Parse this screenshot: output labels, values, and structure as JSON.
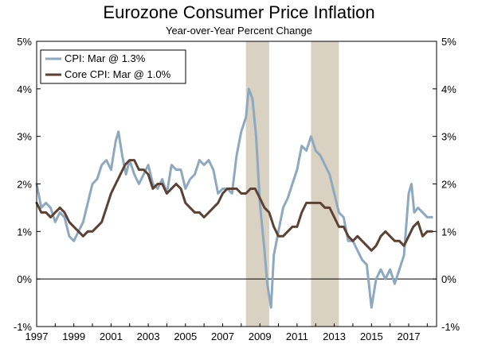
{
  "chart_data": {
    "type": "line",
    "title": "Eurozone Consumer Price Inflation",
    "subtitle": "Year-over-Year Percent Change",
    "xlabel": "",
    "ylabel": "",
    "xlim": [
      1997.0,
      2018.5
    ],
    "ylim": [
      -1,
      5
    ],
    "y_ticks": [
      -1,
      0,
      1,
      2,
      3,
      4,
      5
    ],
    "y_tick_labels": [
      "-1%",
      "0%",
      "1%",
      "2%",
      "3%",
      "4%",
      "5%"
    ],
    "x_ticks": [
      1997,
      1999,
      2001,
      2003,
      2005,
      2007,
      2009,
      2011,
      2013,
      2015,
      2017
    ],
    "x_tick_labels": [
      "1997",
      "1999",
      "2001",
      "2003",
      "2005",
      "2007",
      "2009",
      "2011",
      "2013",
      "2015",
      "2017"
    ],
    "grid": false,
    "zero_line": true,
    "dual_axis_labels": true,
    "legend_position": "top-left",
    "recessions": [
      [
        2008.25,
        2009.5
      ],
      [
        2011.75,
        2013.25
      ]
    ],
    "colors": {
      "cpi": "#8ea9bf",
      "core": "#5b4234",
      "recession": "#d9d2c3"
    },
    "series": [
      {
        "name": "CPI: Mar @ 1.3%",
        "x": [
          1997.0,
          1997.25,
          1997.5,
          1997.75,
          1998.0,
          1998.25,
          1998.5,
          1998.75,
          1999.0,
          1999.25,
          1999.5,
          1999.75,
          2000.0,
          2000.25,
          2000.5,
          2000.75,
          2001.0,
          2001.25,
          2001.4,
          2001.6,
          2001.8,
          2002.0,
          2002.25,
          2002.5,
          2002.75,
          2003.0,
          2003.25,
          2003.5,
          2003.75,
          2004.0,
          2004.25,
          2004.5,
          2004.75,
          2005.0,
          2005.25,
          2005.5,
          2005.75,
          2006.0,
          2006.25,
          2006.5,
          2006.75,
          2007.0,
          2007.25,
          2007.5,
          2007.75,
          2008.0,
          2008.25,
          2008.4,
          2008.6,
          2008.8,
          2009.0,
          2009.25,
          2009.4,
          2009.6,
          2009.75,
          2010.0,
          2010.25,
          2010.5,
          2010.75,
          2011.0,
          2011.25,
          2011.5,
          2011.75,
          2012.0,
          2012.25,
          2012.5,
          2012.75,
          2013.0,
          2013.25,
          2013.5,
          2013.75,
          2014.0,
          2014.25,
          2014.5,
          2014.75,
          2015.0,
          2015.25,
          2015.5,
          2015.75,
          2016.0,
          2016.25,
          2016.5,
          2016.75,
          2017.0,
          2017.15,
          2017.3,
          2017.5,
          2017.75,
          2018.0,
          2018.25
        ],
        "values": [
          2.0,
          1.5,
          1.6,
          1.5,
          1.2,
          1.4,
          1.3,
          0.9,
          0.8,
          1.0,
          1.2,
          1.6,
          2.0,
          2.1,
          2.4,
          2.5,
          2.3,
          2.9,
          3.1,
          2.6,
          2.2,
          2.5,
          2.2,
          2.0,
          2.2,
          2.4,
          2.0,
          1.9,
          2.1,
          1.8,
          2.4,
          2.3,
          2.3,
          1.9,
          2.1,
          2.2,
          2.5,
          2.4,
          2.5,
          2.3,
          1.8,
          1.9,
          1.9,
          1.8,
          2.6,
          3.1,
          3.4,
          4.0,
          3.8,
          3.0,
          1.6,
          0.6,
          -0.1,
          -0.6,
          0.5,
          1.0,
          1.5,
          1.7,
          2.0,
          2.3,
          2.8,
          2.7,
          3.0,
          2.7,
          2.6,
          2.4,
          2.2,
          1.8,
          1.4,
          1.3,
          0.8,
          0.8,
          0.6,
          0.4,
          0.3,
          -0.6,
          0.0,
          0.2,
          0.0,
          0.2,
          -0.1,
          0.2,
          0.5,
          1.8,
          2.0,
          1.4,
          1.5,
          1.4,
          1.3,
          1.3
        ]
      },
      {
        "name": "Core CPI: Mar @ 1.0%",
        "x": [
          1997.0,
          1997.25,
          1997.5,
          1997.75,
          1998.0,
          1998.25,
          1998.5,
          1998.75,
          1999.0,
          1999.25,
          1999.5,
          1999.75,
          2000.0,
          2000.25,
          2000.5,
          2000.75,
          2001.0,
          2001.25,
          2001.5,
          2001.75,
          2002.0,
          2002.25,
          2002.5,
          2002.75,
          2003.0,
          2003.25,
          2003.5,
          2003.75,
          2004.0,
          2004.25,
          2004.5,
          2004.75,
          2005.0,
          2005.25,
          2005.5,
          2005.75,
          2006.0,
          2006.25,
          2006.5,
          2006.75,
          2007.0,
          2007.25,
          2007.5,
          2007.75,
          2008.0,
          2008.25,
          2008.5,
          2008.75,
          2009.0,
          2009.25,
          2009.5,
          2009.75,
          2010.0,
          2010.25,
          2010.5,
          2010.75,
          2011.0,
          2011.25,
          2011.5,
          2011.75,
          2012.0,
          2012.25,
          2012.5,
          2012.75,
          2013.0,
          2013.25,
          2013.5,
          2013.75,
          2014.0,
          2014.25,
          2014.5,
          2014.75,
          2015.0,
          2015.25,
          2015.5,
          2015.75,
          2016.0,
          2016.25,
          2016.5,
          2016.75,
          2017.0,
          2017.25,
          2017.5,
          2017.75,
          2018.0,
          2018.25
        ],
        "values": [
          1.6,
          1.4,
          1.4,
          1.3,
          1.4,
          1.5,
          1.4,
          1.2,
          1.1,
          1.0,
          0.9,
          1.0,
          1.0,
          1.1,
          1.2,
          1.5,
          1.8,
          2.0,
          2.2,
          2.4,
          2.5,
          2.5,
          2.3,
          2.3,
          2.2,
          1.9,
          2.0,
          2.0,
          1.8,
          1.9,
          2.0,
          1.9,
          1.6,
          1.5,
          1.4,
          1.4,
          1.3,
          1.4,
          1.5,
          1.6,
          1.8,
          1.9,
          1.9,
          1.9,
          1.8,
          1.8,
          1.9,
          1.9,
          1.7,
          1.5,
          1.4,
          1.1,
          0.9,
          0.9,
          1.0,
          1.1,
          1.1,
          1.4,
          1.6,
          1.6,
          1.6,
          1.6,
          1.5,
          1.5,
          1.3,
          1.1,
          1.1,
          0.9,
          0.8,
          0.9,
          0.8,
          0.7,
          0.6,
          0.7,
          0.9,
          1.0,
          0.9,
          0.8,
          0.8,
          0.7,
          0.9,
          1.1,
          1.2,
          0.9,
          1.0,
          1.0
        ]
      }
    ]
  }
}
